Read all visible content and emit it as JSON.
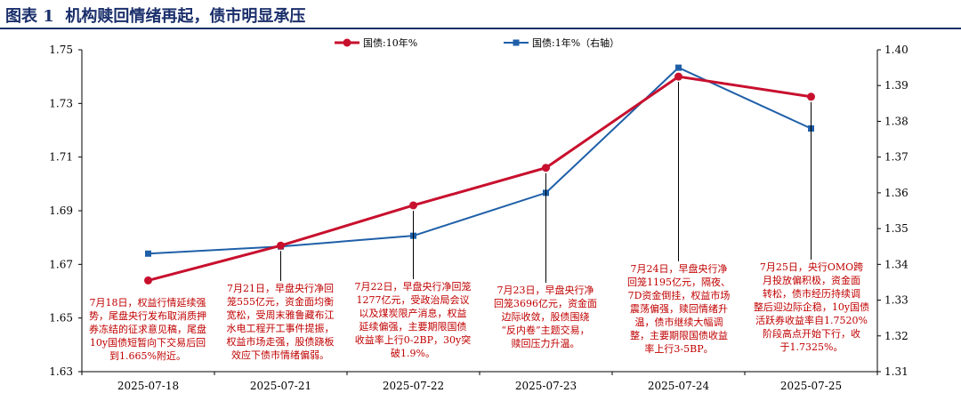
{
  "figure": {
    "label": "图表 1",
    "title": "机构赎回情绪再起，债市明显承压"
  },
  "colors": {
    "title": "#1a2f6b",
    "red": "#c8102e",
    "blue": "#1f5fa8",
    "annotation": "#c00000"
  },
  "chart_data": {
    "type": "line",
    "categories": [
      "2025-07-18",
      "2025-07-21",
      "2025-07-22",
      "2025-07-23",
      "2025-07-24",
      "2025-07-25"
    ],
    "series": [
      {
        "name": "国债:10年%",
        "axis": "left",
        "color": "#c8102e",
        "marker": "circle",
        "values": [
          1.664,
          1.677,
          1.692,
          1.706,
          1.74,
          1.7325
        ]
      },
      {
        "name": "国债:1年%（右轴）",
        "axis": "right",
        "color": "#1f5fa8",
        "marker": "square",
        "values": [
          1.343,
          1.345,
          1.348,
          1.36,
          1.395,
          1.378
        ]
      }
    ],
    "y_left": {
      "min": 1.63,
      "max": 1.75,
      "ticks": [
        "1.63",
        "1.65",
        "1.67",
        "1.69",
        "1.71",
        "1.73",
        "1.75"
      ]
    },
    "y_right": {
      "min": 1.31,
      "max": 1.4,
      "ticks": [
        "1.31",
        "1.32",
        "1.33",
        "1.34",
        "1.35",
        "1.36",
        "1.37",
        "1.38",
        "1.39",
        "1.40"
      ]
    },
    "grid": false,
    "legend": "top",
    "annotations": [
      {
        "lines": [
          "7月18日，权益行情延续强",
          "势，尾盘央行发布取消质押",
          "券冻结的征求意见稿，尾盘",
          "10y国债短暂向下交易后回",
          "到1.665%附近。"
        ]
      },
      {
        "lines": [
          "7月21日，早盘央行净回",
          "笼555亿元，资金面均衡",
          "宽松，受周末雅鲁藏布江",
          "水电工程开工事件提振，",
          "权益市场走强，股债跷板",
          "效应下债市情绪偏弱。"
        ]
      },
      {
        "lines": [
          "7月22日，早盘央行净回笼",
          "1277亿元，受政治局会议",
          "以及煤炭限产消息，权益",
          "延续偏强，主要期限国债",
          "收益率上行0-2BP，30y突",
          "破1.9%。"
        ]
      },
      {
        "lines": [
          "7月23日，早盘央行净",
          "回笼3696亿元，资金面",
          "边际收敛，股债围绕",
          "“反内卷”主题交易，",
          "赎回压力升温。"
        ]
      },
      {
        "lines": [
          "7月24日，早盘央行净",
          "回笼1195亿元，隔夜、",
          "7D资金倒挂，权益市场",
          "震荡偏强，赎回情绪升",
          "温，债市继续大幅调",
          "整，主要期限国债收益",
          "率上行3-5BP。"
        ]
      },
      {
        "lines": [
          "7月25日，央行OMO跨",
          "月投放偏积极，资金面",
          "转松，债市经历持续调",
          "整后迎边际企稳，10y国债",
          "活跃券收益率自1.7520%",
          "阶段高点开始下行，收",
          "于1.7325%。"
        ]
      }
    ]
  }
}
